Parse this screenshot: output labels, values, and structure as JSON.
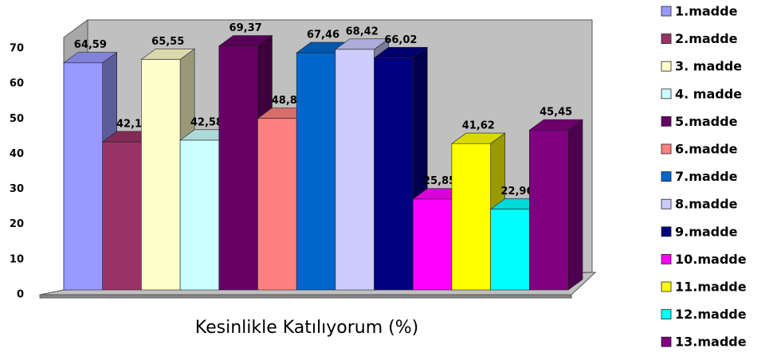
{
  "chart_data": {
    "type": "bar3d",
    "categories": [
      "Kesinlikle Katılıyorum (%)"
    ],
    "ylim": [
      0,
      70
    ],
    "yticks": [
      0,
      10,
      20,
      30,
      40,
      50,
      60,
      70
    ],
    "series": [
      {
        "name": "1.madde",
        "color": "#9999ff",
        "values": [
          64.59
        ],
        "value_labels": [
          "64,59"
        ]
      },
      {
        "name": "2.madde",
        "color": "#993366",
        "values": [
          42.1
        ],
        "value_labels": [
          "42,1"
        ]
      },
      {
        "name": "3. madde",
        "color": "#ffffcc",
        "values": [
          65.55
        ],
        "value_labels": [
          "65,55"
        ]
      },
      {
        "name": "4. madde",
        "color": "#ccffff",
        "values": [
          42.58
        ],
        "value_labels": [
          "42,58"
        ]
      },
      {
        "name": "5.madde",
        "color": "#660066",
        "values": [
          69.37
        ],
        "value_labels": [
          "69,37"
        ]
      },
      {
        "name": "6.madde",
        "color": "#ff8080",
        "values": [
          48.8
        ],
        "value_labels": [
          "48,8"
        ]
      },
      {
        "name": "7.madde",
        "color": "#0066cc",
        "values": [
          67.46
        ],
        "value_labels": [
          "67,46"
        ]
      },
      {
        "name": "8.madde",
        "color": "#ccccff",
        "values": [
          68.42
        ],
        "value_labels": [
          "68,42"
        ]
      },
      {
        "name": "9.madde",
        "color": "#000080",
        "values": [
          66.02
        ],
        "value_labels": [
          "66,02"
        ]
      },
      {
        "name": "10.madde",
        "color": "#ff00ff",
        "values": [
          25.85
        ],
        "value_labels": [
          "25,85"
        ]
      },
      {
        "name": "11.madde",
        "color": "#ffff00",
        "values": [
          41.62
        ],
        "value_labels": [
          "41,62"
        ]
      },
      {
        "name": "12.madde",
        "color": "#00ffff",
        "values": [
          22.96
        ],
        "value_labels": [
          "22,96"
        ]
      },
      {
        "name": "13.madde",
        "color": "#800080",
        "values": [
          45.45
        ],
        "value_labels": [
          "45,45"
        ]
      }
    ]
  }
}
